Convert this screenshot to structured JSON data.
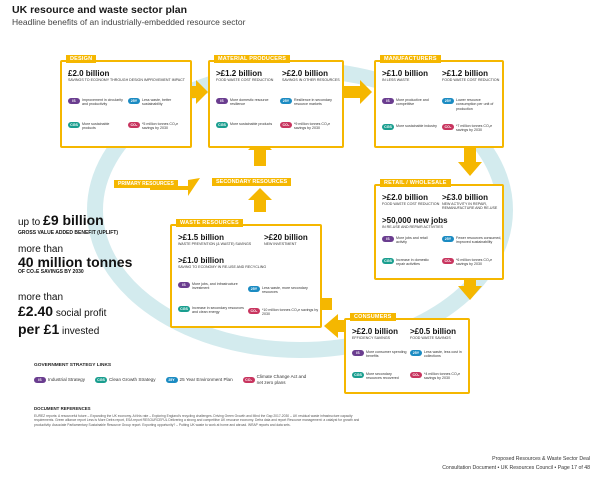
{
  "header": {
    "title": "UK resource and waste sector plan",
    "subtitle": "Headline benefits of an industrially-embedded resource sector"
  },
  "badges": {
    "is": "IS",
    "cgs": "CGS",
    "y25": "25Y",
    "co2": "CO₂"
  },
  "colors": {
    "accent": "#f5b700",
    "ring": "#c9e6ea",
    "is": "#6a3d8f",
    "cgs": "#1a9e8f",
    "y25": "#1b8bc2",
    "co2": "#c8355f"
  },
  "boxes": {
    "design": {
      "title": "DESIGN",
      "s1v": "£2.0 billion",
      "s1l": "SAVINGS TO ECONOMY THROUGH DESIGN IMPROVEMENT IMPACT",
      "is": "Improvement in circularity and productivity",
      "y25": "Less waste, better sustainability",
      "cgs": "More sustainable products",
      "co2": "*5 million tonnes CO₂e savings by 2030"
    },
    "material": {
      "title": "MATERIAL PRODUCERS",
      "s1v": ">£1.2 billion",
      "s1l": "FOOD WASTE COST REDUCTION",
      "s2v": ">£2.0 billion",
      "s2l": "SAVINGS IN OTHER RESOURCES",
      "is": "More domestic resource resilience",
      "y25": "Resilience in secondary resource markets",
      "cgs": "More sustainable products",
      "co2": "*9 million tonnes CO₂e savings by 2030"
    },
    "manufacturers": {
      "title": "MANUFACTURERS",
      "s1v": ">£1.0 billion",
      "s1l": "IN LESS WASTE",
      "s2v": ">£1.2 billion",
      "s2l": "FOOD WASTE COST REDUCTION",
      "is": "More productive and competitive",
      "y25": "Lower resource consumption per unit of production",
      "cgs": "More sustainable industry",
      "co2": "*7 million tonnes CO₂e savings by 2030"
    },
    "retail": {
      "title": "RETAIL / WHOLESALE",
      "s1v": ">£2.0 billion",
      "s1l": "FOOD WASTE COST REDUCTION",
      "s2v": ">£3.0 billion",
      "s2l": "NEW ACTIVITY IN REPAIR, REMANUFACTURE AND RE-USE",
      "s3v": ">50,000 new jobs",
      "s3l": "IN RE-USE AND REPAIR ACTIVITIES",
      "is": "More jobs and retail activity",
      "y25": "Fewer resources consumed, improved sustainability",
      "cgs": "Increase in domestic repair activities",
      "co2": "*6 million tonnes CO₂e savings by 2030"
    },
    "consumers": {
      "title": "CONSUMERS",
      "s1v": ">£2.0 billion",
      "s1l": "EFFICIENCY SAVINGS",
      "s2v": ">£0.5 billion",
      "s2l": "FOOD WASTE SAVINGS",
      "is": "More consumer spending benefits",
      "y25": "Less waste, less cost in collections",
      "cgs": "More secondary resources recovered",
      "co2": "*4 million tonnes CO₂e savings by 2030"
    },
    "waste": {
      "title": "WASTE RESOURCES",
      "s1v": ">£1.5 billion",
      "s1l": "WASTE PREVENTION (& WASTE) SAVINGS",
      "s2v": ">£20 billion",
      "s2l": "NEW INVESTMENT",
      "s3v": ">£1.0 billion",
      "s3l": "SAVING TO ECONOMY IN RE-USE AND RECYCLING",
      "is": "More jobs, and infrastructure investment",
      "y25": "Less waste, more secondary resources",
      "cgs": "Increase in secondary resources and clean energy",
      "co2": "*10 million tonnes CO₂e savings by 2030"
    }
  },
  "flow_labels": {
    "primary": "PRIMARY RESOURCES",
    "secondary": "SECONDARY RESOURCES"
  },
  "headline": {
    "a_pre": "up to ",
    "a_big": "£9 billion",
    "a_sub": "GROSS VALUE ADDED BENEFIT (UPLIFT)",
    "b_pre": "more than",
    "b_big": "40 million tonnes",
    "b_sub": "OF CO₂e SAVINGS BY 2030",
    "c_pre": "more than",
    "c_big": "£2.40",
    "c_mid": " social profit",
    "c_big2": "per £1",
    "c_end": " invested"
  },
  "legend": {
    "title": "GOVERNMENT STRATEGY LINKS",
    "is": "Industrial Strategy",
    "cgs": "Clean Growth Strategy",
    "y25": "25 Year Environment Plan",
    "co2": "Climate Change Act and net zero plans"
  },
  "docrefs": {
    "title": "DOCUMENT REFERENCES",
    "text": "EUREZ reports: A resourceful future – Expanding the UK economy. At this rate – Exploring England's recycling challenges. Driving Green Growth and Mind the Gap 2017-2030 – UK residual waste infrastructure capacity requirements. Green alliance report Less is More Defra report, ESA report RESOURCEFUL Delivering a strong and competitive UK resource economy. Defra data and report Resource management: a catalyst for growth and productivity. Associate Parliamentary Sustainable Resource Group report. Exporting opportunity? – Putting UK waste to work at home and abroad. WRAP reports and data sets."
  },
  "footer": {
    "line1": "Proposed Resources & Waste Sector Deal",
    "line2": "Consultation Document • UK Resources Council • Page 17 of 48"
  }
}
